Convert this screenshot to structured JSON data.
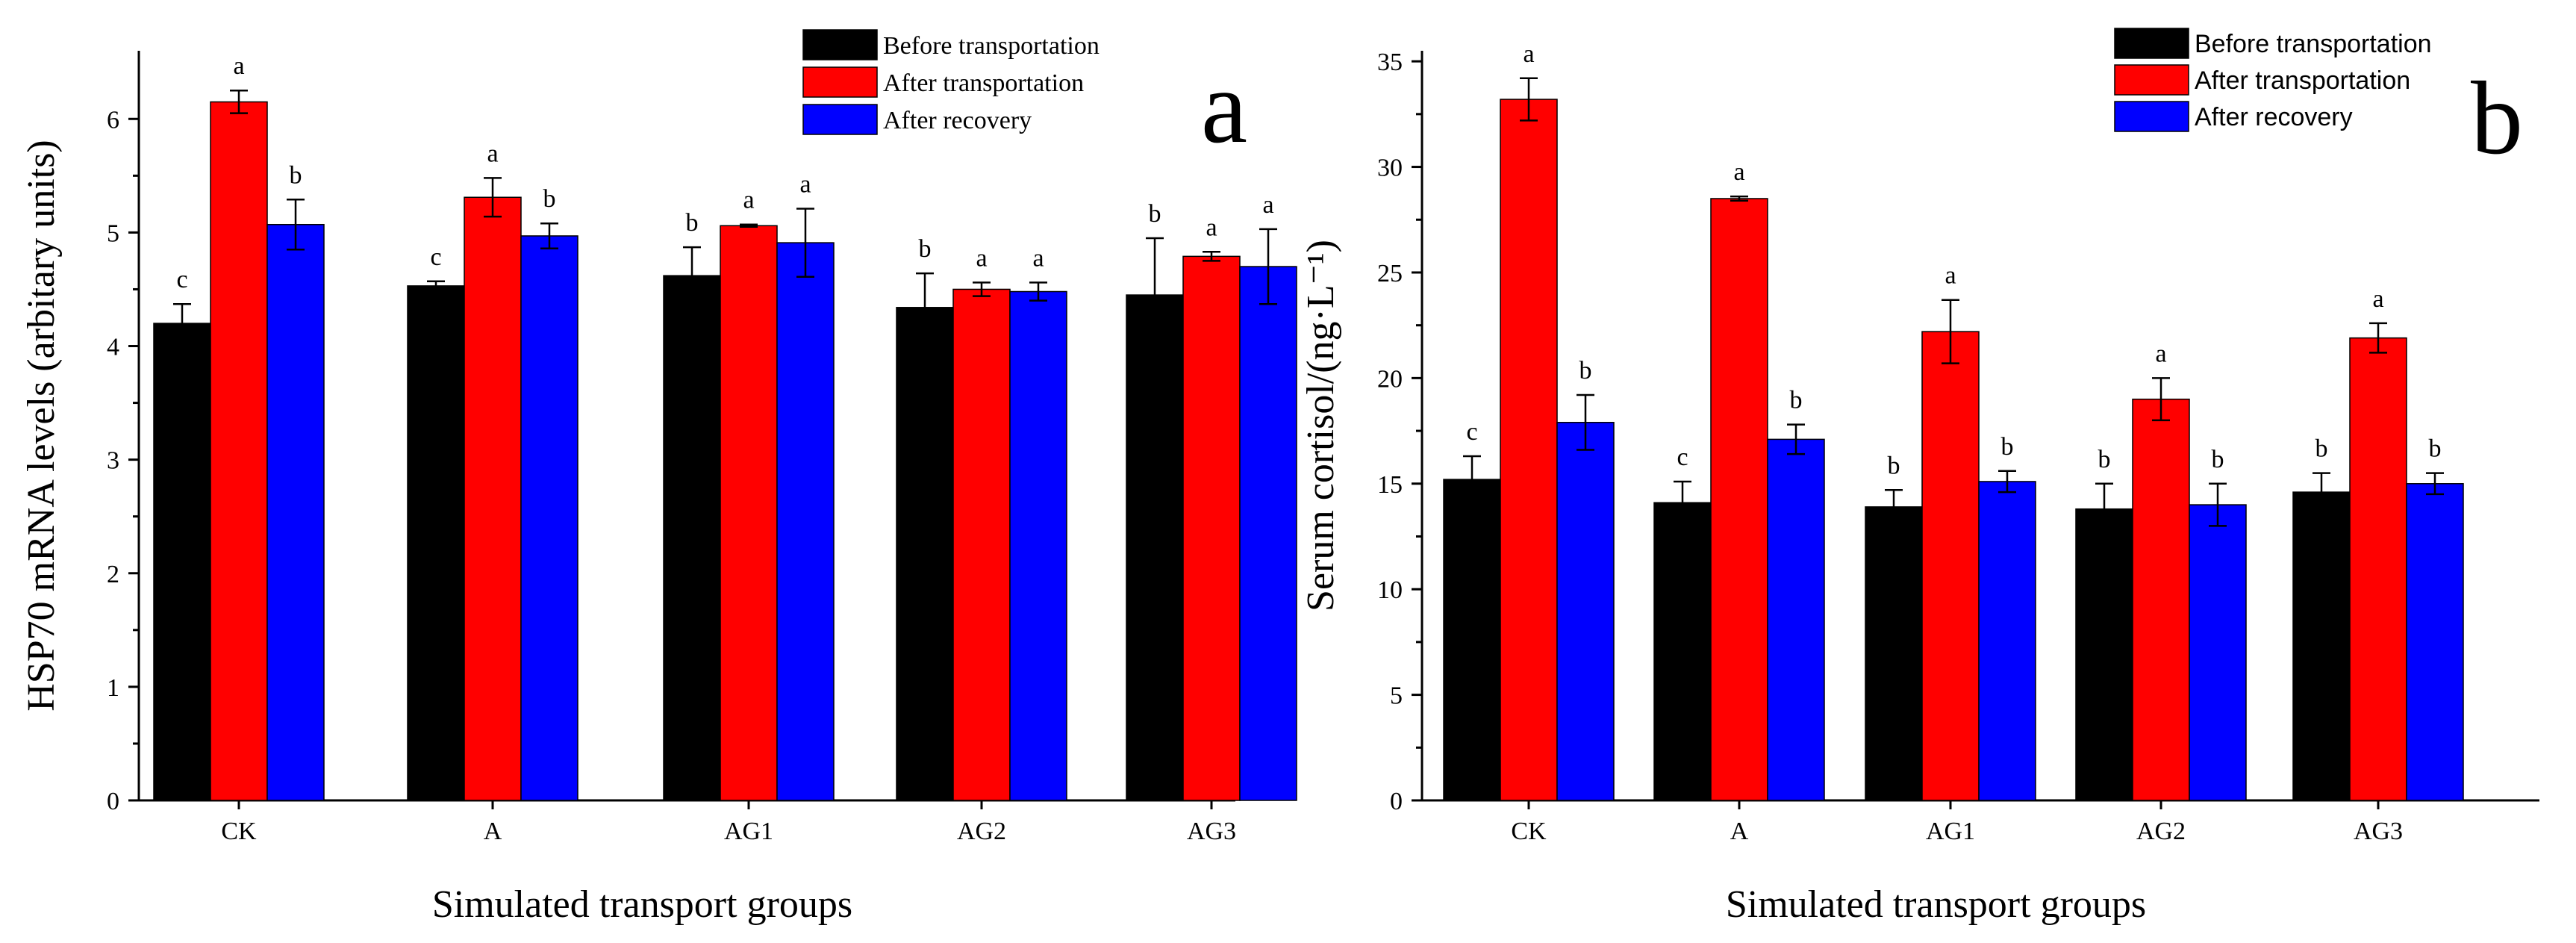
{
  "chart_data": [
    {
      "type": "bar",
      "panel_label": "a",
      "title": "",
      "xlabel": "Simulated transport groups",
      "ylabel": "HSP70 mRNA levels (arbitary units)",
      "ylim": [
        0,
        6.6
      ],
      "yticks": [
        0,
        1,
        2,
        3,
        4,
        5,
        6
      ],
      "grid": false,
      "legend_position": "top-right",
      "legend_font": "serif",
      "categories": [
        "CK",
        "A",
        "AG1",
        "AG2",
        "AG3"
      ],
      "series": [
        {
          "name": "Before transportation",
          "color": "#000000",
          "values": [
            4.2,
            4.53,
            4.62,
            4.34,
            4.45
          ],
          "errors": [
            0.17,
            0.04,
            0.25,
            0.3,
            0.5
          ],
          "letters": [
            "c",
            "c",
            "b",
            "b",
            "b"
          ]
        },
        {
          "name": "After transportation",
          "color": "#ff0000",
          "values": [
            6.15,
            5.31,
            5.06,
            4.5,
            4.79
          ],
          "errors": [
            0.1,
            0.17,
            0.01,
            0.06,
            0.04
          ],
          "letters": [
            "a",
            "a",
            "a",
            "a",
            "a"
          ]
        },
        {
          "name": "After recovery",
          "color": "#0000ff",
          "values": [
            5.07,
            4.97,
            4.91,
            4.48,
            4.7
          ],
          "errors": [
            0.22,
            0.11,
            0.3,
            0.08,
            0.33
          ],
          "letters": [
            "b",
            "b",
            "a",
            "a",
            "a"
          ]
        }
      ]
    },
    {
      "type": "bar",
      "panel_label": "b",
      "title": "",
      "xlabel": "Simulated transport groups",
      "ylabel": "Serum cortisol/(ng·L⁻¹)",
      "ylim": [
        0,
        35.5
      ],
      "yticks": [
        0,
        5,
        10,
        15,
        20,
        25,
        30,
        35
      ],
      "grid": false,
      "legend_position": "top-right",
      "legend_font": "sans",
      "categories": [
        "CK",
        "A",
        "AG1",
        "AG2",
        "AG3"
      ],
      "series": [
        {
          "name": "Before transportation",
          "color": "#000000",
          "values": [
            15.2,
            14.1,
            13.9,
            13.8,
            14.6
          ],
          "errors": [
            1.1,
            1.0,
            0.8,
            1.2,
            0.9
          ],
          "letters": [
            "c",
            "c",
            "b",
            "b",
            "b"
          ]
        },
        {
          "name": "After transportation",
          "color": "#ff0000",
          "values": [
            33.2,
            28.5,
            22.2,
            19.0,
            21.9
          ],
          "errors": [
            1.0,
            0.1,
            1.5,
            1.0,
            0.7
          ],
          "letters": [
            "a",
            "a",
            "a",
            "a",
            "a"
          ]
        },
        {
          "name": "After recovery",
          "color": "#0000ff",
          "values": [
            17.9,
            17.1,
            15.1,
            14.0,
            15.0
          ],
          "errors": [
            1.3,
            0.7,
            0.5,
            1.0,
            0.5
          ],
          "letters": [
            "b",
            "b",
            "b",
            "b",
            "b"
          ]
        }
      ]
    }
  ]
}
